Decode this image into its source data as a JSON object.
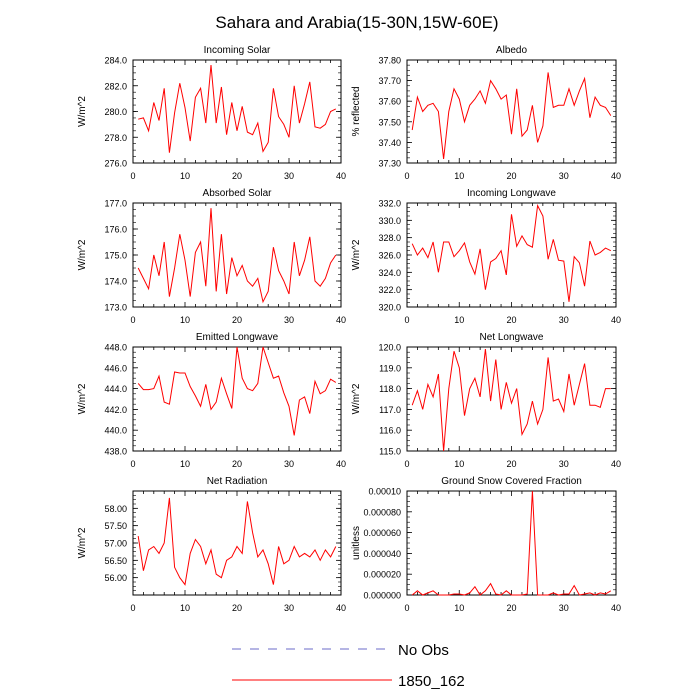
{
  "figure": {
    "title": "Sahara and Arabia(15-30N,15W-60E)",
    "legend": [
      {
        "label": "No Obs",
        "color": "#6b6bc8",
        "style": "dashed"
      },
      {
        "label": "1850_162",
        "color": "#ff0000",
        "style": "solid"
      }
    ]
  },
  "chart_data": [
    {
      "type": "line",
      "title": "Incoming Solar",
      "ylabel": "W/m^2",
      "xlim": [
        0,
        40
      ],
      "ylim": [
        276,
        284
      ],
      "xticks": [
        0,
        10,
        20,
        30,
        40
      ],
      "yticks": [
        "276.0",
        "278.0",
        "280.0",
        "282.0",
        "284.0"
      ],
      "series": [
        {
          "name": "1850_162",
          "color": "#ff0000",
          "x": [
            1,
            2,
            3,
            4,
            5,
            6,
            7,
            8,
            9,
            10,
            11,
            12,
            13,
            14,
            15,
            16,
            17,
            18,
            19,
            20,
            21,
            22,
            23,
            24,
            25,
            26,
            27,
            28,
            29,
            30,
            31,
            32,
            33,
            34,
            35,
            36,
            37,
            38,
            39
          ],
          "values": [
            279.4,
            279.5,
            278.5,
            280.7,
            279.3,
            281.8,
            276.8,
            279.9,
            282.2,
            280.3,
            277.7,
            281.1,
            281.8,
            279.1,
            283.6,
            279.1,
            281.9,
            278.2,
            280.7,
            278.5,
            280.4,
            278.4,
            278.2,
            279.1,
            276.9,
            277.6,
            281.8,
            279.6,
            279.0,
            278.0,
            282.0,
            279.1,
            280.6,
            282.3,
            278.8,
            278.7,
            279.0,
            280.0,
            280.2
          ]
        }
      ]
    },
    {
      "type": "line",
      "title": "Albedo",
      "ylabel": "% reflected",
      "xlim": [
        0,
        40
      ],
      "ylim": [
        37.3,
        37.8
      ],
      "xticks": [
        0,
        10,
        20,
        30,
        40
      ],
      "yticks": [
        "37.30",
        "37.40",
        "37.50",
        "37.60",
        "37.70",
        "37.80"
      ],
      "series": [
        {
          "name": "1850_162",
          "color": "#ff0000",
          "x": [
            1,
            2,
            3,
            4,
            5,
            6,
            7,
            8,
            9,
            10,
            11,
            12,
            13,
            14,
            15,
            16,
            17,
            18,
            19,
            20,
            21,
            22,
            23,
            24,
            25,
            26,
            27,
            28,
            29,
            30,
            31,
            32,
            33,
            34,
            35,
            36,
            37,
            38,
            39
          ],
          "values": [
            37.46,
            37.62,
            37.55,
            37.58,
            37.59,
            37.55,
            37.32,
            37.55,
            37.66,
            37.61,
            37.5,
            37.58,
            37.61,
            37.65,
            37.59,
            37.7,
            37.66,
            37.61,
            37.63,
            37.44,
            37.66,
            37.43,
            37.46,
            37.58,
            37.4,
            37.48,
            37.74,
            37.57,
            37.58,
            37.58,
            37.66,
            37.58,
            37.65,
            37.71,
            37.52,
            37.62,
            37.58,
            37.57,
            37.53
          ]
        }
      ]
    },
    {
      "type": "line",
      "title": "Absorbed Solar",
      "ylabel": "W/m^2",
      "xlim": [
        0,
        40
      ],
      "ylim": [
        173,
        177
      ],
      "xticks": [
        0,
        10,
        20,
        30,
        40
      ],
      "yticks": [
        "173.0",
        "174.0",
        "175.0",
        "176.0",
        "177.0"
      ],
      "series": [
        {
          "name": "1850_162",
          "color": "#ff0000",
          "x": [
            1,
            2,
            3,
            4,
            5,
            6,
            7,
            8,
            9,
            10,
            11,
            12,
            13,
            14,
            15,
            16,
            17,
            18,
            19,
            20,
            21,
            22,
            23,
            24,
            25,
            26,
            27,
            28,
            29,
            30,
            31,
            32,
            33,
            34,
            35,
            36,
            37,
            38,
            39
          ],
          "values": [
            174.5,
            174.1,
            173.7,
            175.0,
            174.2,
            175.5,
            173.4,
            174.5,
            175.8,
            174.8,
            173.4,
            175.1,
            175.5,
            173.8,
            176.8,
            173.6,
            175.8,
            173.5,
            174.9,
            174.2,
            174.6,
            174.0,
            173.8,
            174.1,
            173.2,
            173.6,
            175.3,
            174.4,
            174.0,
            173.5,
            175.5,
            174.2,
            174.8,
            175.7,
            174.0,
            173.8,
            174.1,
            174.7,
            175.0
          ]
        }
      ]
    },
    {
      "type": "line",
      "title": "Incoming Longwave",
      "ylabel": "W/m^2",
      "xlim": [
        0,
        40
      ],
      "ylim": [
        320,
        332
      ],
      "xticks": [
        0,
        10,
        20,
        30,
        40
      ],
      "yticks": [
        "320.0",
        "322.0",
        "324.0",
        "326.0",
        "328.0",
        "330.0",
        "332.0"
      ],
      "series": [
        {
          "name": "1850_162",
          "color": "#ff0000",
          "x": [
            1,
            2,
            3,
            4,
            5,
            6,
            7,
            8,
            9,
            10,
            11,
            12,
            13,
            14,
            15,
            16,
            17,
            18,
            19,
            20,
            21,
            22,
            23,
            24,
            25,
            26,
            27,
            28,
            29,
            30,
            31,
            32,
            33,
            34,
            35,
            36,
            37,
            38,
            39
          ],
          "values": [
            327.3,
            326.0,
            326.8,
            325.7,
            327.5,
            324.0,
            327.5,
            327.5,
            325.8,
            326.5,
            327.4,
            325.2,
            323.8,
            326.7,
            322.0,
            325.2,
            325.6,
            326.5,
            323.7,
            330.7,
            327.0,
            328.2,
            327.2,
            326.9,
            331.7,
            330.5,
            325.5,
            327.8,
            325.4,
            325.3,
            320.6,
            325.8,
            325.1,
            322.4,
            327.6,
            326.0,
            326.3,
            326.8,
            326.5
          ]
        }
      ]
    },
    {
      "type": "line",
      "title": "Emitted Longwave",
      "ylabel": "W/m^2",
      "xlim": [
        0,
        40
      ],
      "ylim": [
        438,
        448
      ],
      "xticks": [
        0,
        10,
        20,
        30,
        40
      ],
      "yticks": [
        "438.0",
        "440.0",
        "442.0",
        "444.0",
        "446.0",
        "448.0"
      ],
      "series": [
        {
          "name": "1850_162",
          "color": "#ff0000",
          "x": [
            1,
            2,
            3,
            4,
            5,
            6,
            7,
            8,
            9,
            10,
            11,
            12,
            13,
            14,
            15,
            16,
            17,
            18,
            19,
            20,
            21,
            22,
            23,
            24,
            25,
            26,
            27,
            28,
            29,
            30,
            31,
            32,
            33,
            34,
            35,
            36,
            37,
            38,
            39
          ],
          "values": [
            444.5,
            443.9,
            443.9,
            444.0,
            445.2,
            442.7,
            442.5,
            445.6,
            445.5,
            445.5,
            444.2,
            443.3,
            442.3,
            444.4,
            442.0,
            442.7,
            445.0,
            443.5,
            442.1,
            448.0,
            445.0,
            444.0,
            443.8,
            444.5,
            448.0,
            446.5,
            445.0,
            445.2,
            443.6,
            442.3,
            439.5,
            442.9,
            443.2,
            441.6,
            444.7,
            443.5,
            443.8,
            444.9,
            444.6
          ]
        }
      ]
    },
    {
      "type": "line",
      "title": "Net Longwave",
      "ylabel": "W/m^2",
      "xlim": [
        0,
        40
      ],
      "ylim": [
        115,
        120
      ],
      "xticks": [
        0,
        10,
        20,
        30,
        40
      ],
      "yticks": [
        "115.0",
        "116.0",
        "117.0",
        "118.0",
        "119.0",
        "120.0"
      ],
      "series": [
        {
          "name": "1850_162",
          "color": "#ff0000",
          "x": [
            1,
            2,
            3,
            4,
            5,
            6,
            7,
            8,
            9,
            10,
            11,
            12,
            13,
            14,
            15,
            16,
            17,
            18,
            19,
            20,
            21,
            22,
            23,
            24,
            25,
            26,
            27,
            28,
            29,
            30,
            31,
            32,
            33,
            34,
            35,
            36,
            37,
            38,
            39
          ],
          "values": [
            117.2,
            117.9,
            117.0,
            118.2,
            117.6,
            118.7,
            115.0,
            118.0,
            119.8,
            119.0,
            116.7,
            118.0,
            118.5,
            117.6,
            119.9,
            117.4,
            119.4,
            117.0,
            118.3,
            117.3,
            118.0,
            115.8,
            116.3,
            117.4,
            116.3,
            117.0,
            119.5,
            117.4,
            117.5,
            116.9,
            118.7,
            117.2,
            118.2,
            119.2,
            117.2,
            117.2,
            117.1,
            118.0,
            118.0
          ]
        }
      ]
    },
    {
      "type": "line",
      "title": "Net Radiation",
      "ylabel": "W/m^2",
      "xlim": [
        0,
        40
      ],
      "ylim": [
        55.5,
        58.5
      ],
      "xticks": [
        0,
        10,
        20,
        30,
        40
      ],
      "yticks": [
        "56.00",
        "56.50",
        "57.00",
        "57.50",
        "58.00"
      ],
      "series": [
        {
          "name": "1850_162",
          "color": "#ff0000",
          "x": [
            1,
            2,
            3,
            4,
            5,
            6,
            7,
            8,
            9,
            10,
            11,
            12,
            13,
            14,
            15,
            16,
            17,
            18,
            19,
            20,
            21,
            22,
            23,
            24,
            25,
            26,
            27,
            28,
            29,
            30,
            31,
            32,
            33,
            34,
            35,
            36,
            37,
            38,
            39
          ],
          "values": [
            57.2,
            56.2,
            56.8,
            56.9,
            56.7,
            57.0,
            58.3,
            56.3,
            56.0,
            55.8,
            56.7,
            57.1,
            56.9,
            56.4,
            56.8,
            56.1,
            56.0,
            56.5,
            56.6,
            56.9,
            56.7,
            58.2,
            57.3,
            56.6,
            56.8,
            56.4,
            55.8,
            56.9,
            56.4,
            56.5,
            56.9,
            56.6,
            56.7,
            56.6,
            56.8,
            56.5,
            56.8,
            56.6,
            56.9
          ]
        }
      ]
    },
    {
      "type": "line",
      "title": "Ground Snow Covered Fraction",
      "ylabel": "unitless",
      "xlim": [
        0,
        40
      ],
      "ylim": [
        0,
        0.0001
      ],
      "xticks": [
        0,
        10,
        20,
        30,
        40
      ],
      "yticks": [
        "0.000000",
        "0.000020",
        "0.000040",
        "0.000060",
        "0.000080",
        "0.00010"
      ],
      "series": [
        {
          "name": "1850_162",
          "color": "#ff0000",
          "x": [
            1,
            2,
            3,
            4,
            5,
            6,
            7,
            8,
            9,
            10,
            11,
            12,
            13,
            14,
            15,
            16,
            17,
            18,
            19,
            20,
            21,
            22,
            23,
            24,
            25,
            26,
            27,
            28,
            29,
            30,
            31,
            32,
            33,
            34,
            35,
            36,
            37,
            38,
            39
          ],
          "values": [
            0,
            4e-06,
            0,
            2e-06,
            4e-06,
            0,
            0,
            0,
            1e-06,
            1e-06,
            0,
            2e-06,
            8e-06,
            0,
            4e-06,
            1.1e-05,
            1e-06,
            0,
            4e-06,
            0,
            0,
            0,
            1e-06,
            0.0001,
            0,
            0,
            0,
            2e-06,
            0,
            1e-06,
            1e-06,
            9e-06,
            0,
            1e-06,
            2e-06,
            0,
            2e-06,
            1e-06,
            4e-06
          ]
        }
      ]
    }
  ]
}
